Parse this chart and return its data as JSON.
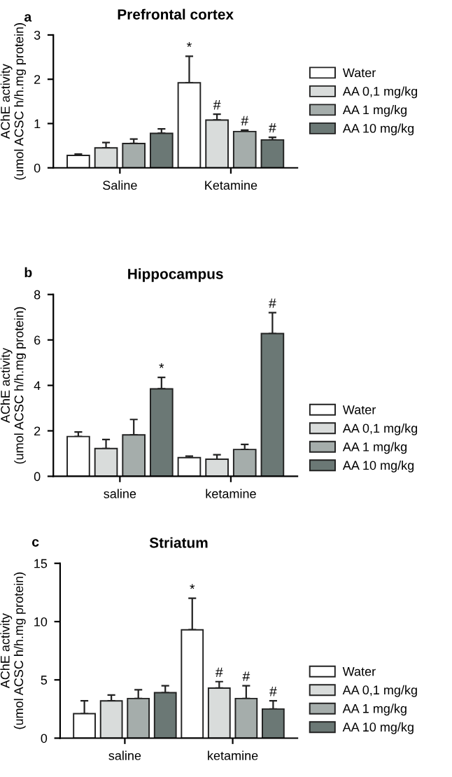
{
  "chart_data": [
    {
      "type": "bar",
      "title": "Prefrontal cortex",
      "ylabel": "AChE activity\n(umol ACSC h/h.mg protein)",
      "categories": [
        "Saline",
        "Ketamine"
      ],
      "ylim": [
        0,
        3
      ],
      "yticks": [
        0,
        1,
        2,
        3
      ],
      "legend": "right",
      "grid": false,
      "series": [
        {
          "name": "Water",
          "color": "#ffffff",
          "values": [
            0.28,
            1.92
          ],
          "errors": [
            0.03,
            0.6
          ],
          "value_labels": [
            null,
            "*"
          ]
        },
        {
          "name": "AA 0,1 mg/kg",
          "color": "#d9dcdb",
          "values": [
            0.45,
            1.08
          ],
          "errors": [
            0.12,
            0.13
          ],
          "value_labels": [
            null,
            "#"
          ]
        },
        {
          "name": "AA 1 mg/kg",
          "color": "#a5adab",
          "values": [
            0.55,
            0.82
          ],
          "errors": [
            0.1,
            0.03
          ],
          "value_labels": [
            null,
            "#"
          ]
        },
        {
          "name": "AA 10 mg/kg",
          "color": "#6b7875",
          "values": [
            0.78,
            0.63
          ],
          "errors": [
            0.1,
            0.06
          ],
          "value_labels": [
            null,
            "#"
          ]
        }
      ],
      "annotations": [
        "a"
      ]
    },
    {
      "type": "bar",
      "title": "Hippocampus",
      "ylabel": "AChE activity\n(umol ACSC h/h.mg protein)",
      "categories": [
        "saline",
        "ketamine"
      ],
      "ylim": [
        0,
        8
      ],
      "yticks": [
        0,
        2,
        4,
        6,
        8
      ],
      "legend": "bottom right",
      "grid": false,
      "series": [
        {
          "name": "Water",
          "color": "#ffffff",
          "values": [
            1.75,
            0.82
          ],
          "errors": [
            0.2,
            0.07
          ]
        },
        {
          "name": "AA 0,1 mg/kg",
          "color": "#d9dcdb",
          "values": [
            1.22,
            0.75
          ],
          "errors": [
            0.4,
            0.2
          ]
        },
        {
          "name": "AA 1 mg/kg",
          "color": "#a5adab",
          "values": [
            1.82,
            1.18
          ],
          "errors": [
            0.68,
            0.22
          ]
        },
        {
          "name": "AA 10 mg/kg",
          "color": "#6b7875",
          "values": [
            3.85,
            6.28
          ],
          "errors": [
            0.5,
            0.92
          ],
          "value_labels": [
            "*",
            "#"
          ]
        }
      ],
      "annotations": [
        "b"
      ]
    },
    {
      "type": "bar",
      "title": "Striatum",
      "ylabel": "AChE activity\n(umol ACSC h/h.mg protein)",
      "categories": [
        "saline",
        "ketamine"
      ],
      "ylim": [
        0,
        15
      ],
      "yticks": [
        0,
        5,
        10,
        15
      ],
      "legend": "bottom right",
      "grid": false,
      "series": [
        {
          "name": "Water",
          "color": "#ffffff",
          "values": [
            2.1,
            9.3
          ],
          "errors": [
            1.1,
            2.7
          ],
          "value_labels": [
            null,
            "*"
          ]
        },
        {
          "name": "AA 0,1 mg/kg",
          "color": "#d9dcdb",
          "values": [
            3.2,
            4.3
          ],
          "errors": [
            0.5,
            0.55
          ],
          "value_labels": [
            null,
            "#"
          ]
        },
        {
          "name": "AA 1 mg/kg",
          "color": "#a5adab",
          "values": [
            3.4,
            3.4
          ],
          "errors": [
            0.75,
            1.1
          ],
          "value_labels": [
            null,
            "#"
          ]
        },
        {
          "name": "AA 10 mg/kg",
          "color": "#6b7875",
          "values": [
            3.9,
            2.5
          ],
          "errors": [
            0.6,
            0.7
          ],
          "value_labels": [
            null,
            "#"
          ]
        }
      ],
      "annotations": [
        "c"
      ]
    }
  ]
}
